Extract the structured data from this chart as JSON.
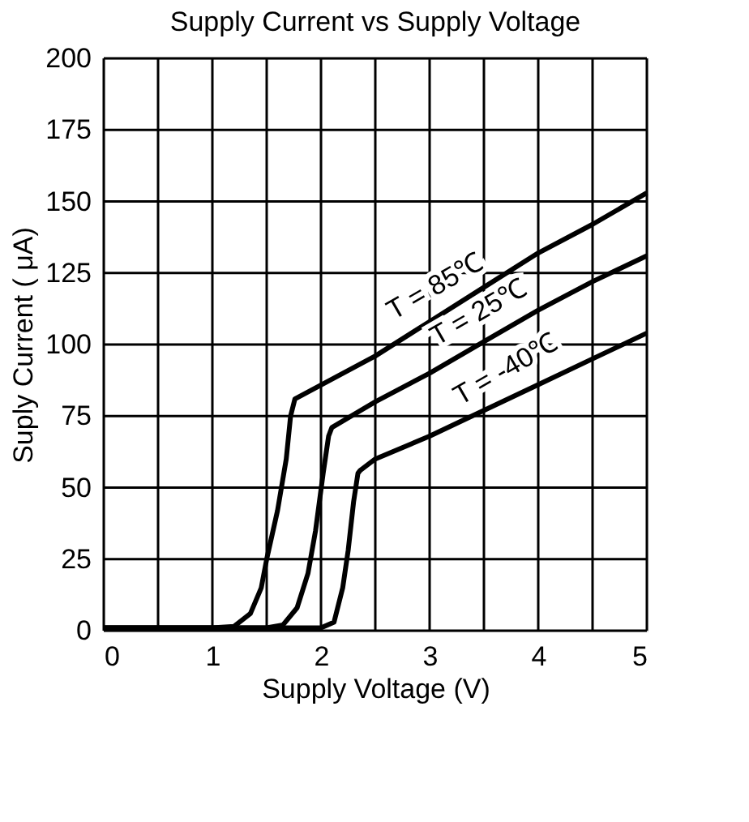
{
  "chart_data": {
    "type": "line",
    "title": "Supply Current vs Supply Voltage",
    "xlabel": "Supply Voltage (V)",
    "ylabel": "Suply Current ( μA)",
    "xlim": [
      0,
      5
    ],
    "ylim": [
      0,
      200
    ],
    "xticks": [
      0,
      {
        "value": 0.5,
        "label": null
      },
      1,
      {
        "value": 1.5,
        "label": null
      },
      2,
      {
        "value": 2.5,
        "label": null
      },
      3,
      {
        "value": 3.5,
        "label": null
      },
      4,
      {
        "value": 4.5,
        "label": null
      },
      5
    ],
    "yticks": [
      0,
      25,
      50,
      75,
      100,
      125,
      150,
      175,
      200
    ],
    "grid": true,
    "marker": "none",
    "line_style": "solid",
    "series": [
      {
        "color": "#000000",
        "x": [
          0,
          1.0,
          1.2,
          1.35,
          1.45,
          1.5,
          1.6,
          1.68,
          1.72,
          1.76,
          2.5,
          3,
          3.5,
          4,
          4.5,
          5
        ],
        "values": [
          1,
          1,
          1.5,
          6,
          15,
          25,
          42,
          60,
          75,
          81,
          96,
          108,
          120,
          132,
          142,
          153
        ]
      },
      {
        "color": "#000000",
        "x": [
          0,
          1.5,
          1.65,
          1.78,
          1.88,
          1.95,
          2.02,
          2.07,
          2.1,
          2.5,
          3,
          3.5,
          4,
          4.5,
          5
        ],
        "values": [
          1,
          1,
          2,
          8,
          20,
          35,
          55,
          68,
          71,
          80,
          90,
          101,
          112,
          122,
          131
        ]
      },
      {
        "color": "#000000",
        "x": [
          0,
          2.0,
          2.12,
          2.2,
          2.25,
          2.3,
          2.34,
          2.36,
          2.5,
          3,
          3.5,
          4,
          4.5,
          5
        ],
        "values": [
          1,
          1,
          3,
          15,
          28,
          45,
          55,
          56,
          60,
          68,
          77,
          86,
          95,
          104
        ]
      }
    ],
    "annotations": [
      {
        "text": "T = 85℃",
        "x": 3.25,
        "y": 114
      },
      {
        "text": "T = 25℃",
        "x": 3.65,
        "y": 105
      },
      {
        "text": "T = -40℃",
        "x": 3.9,
        "y": 85
      }
    ]
  }
}
